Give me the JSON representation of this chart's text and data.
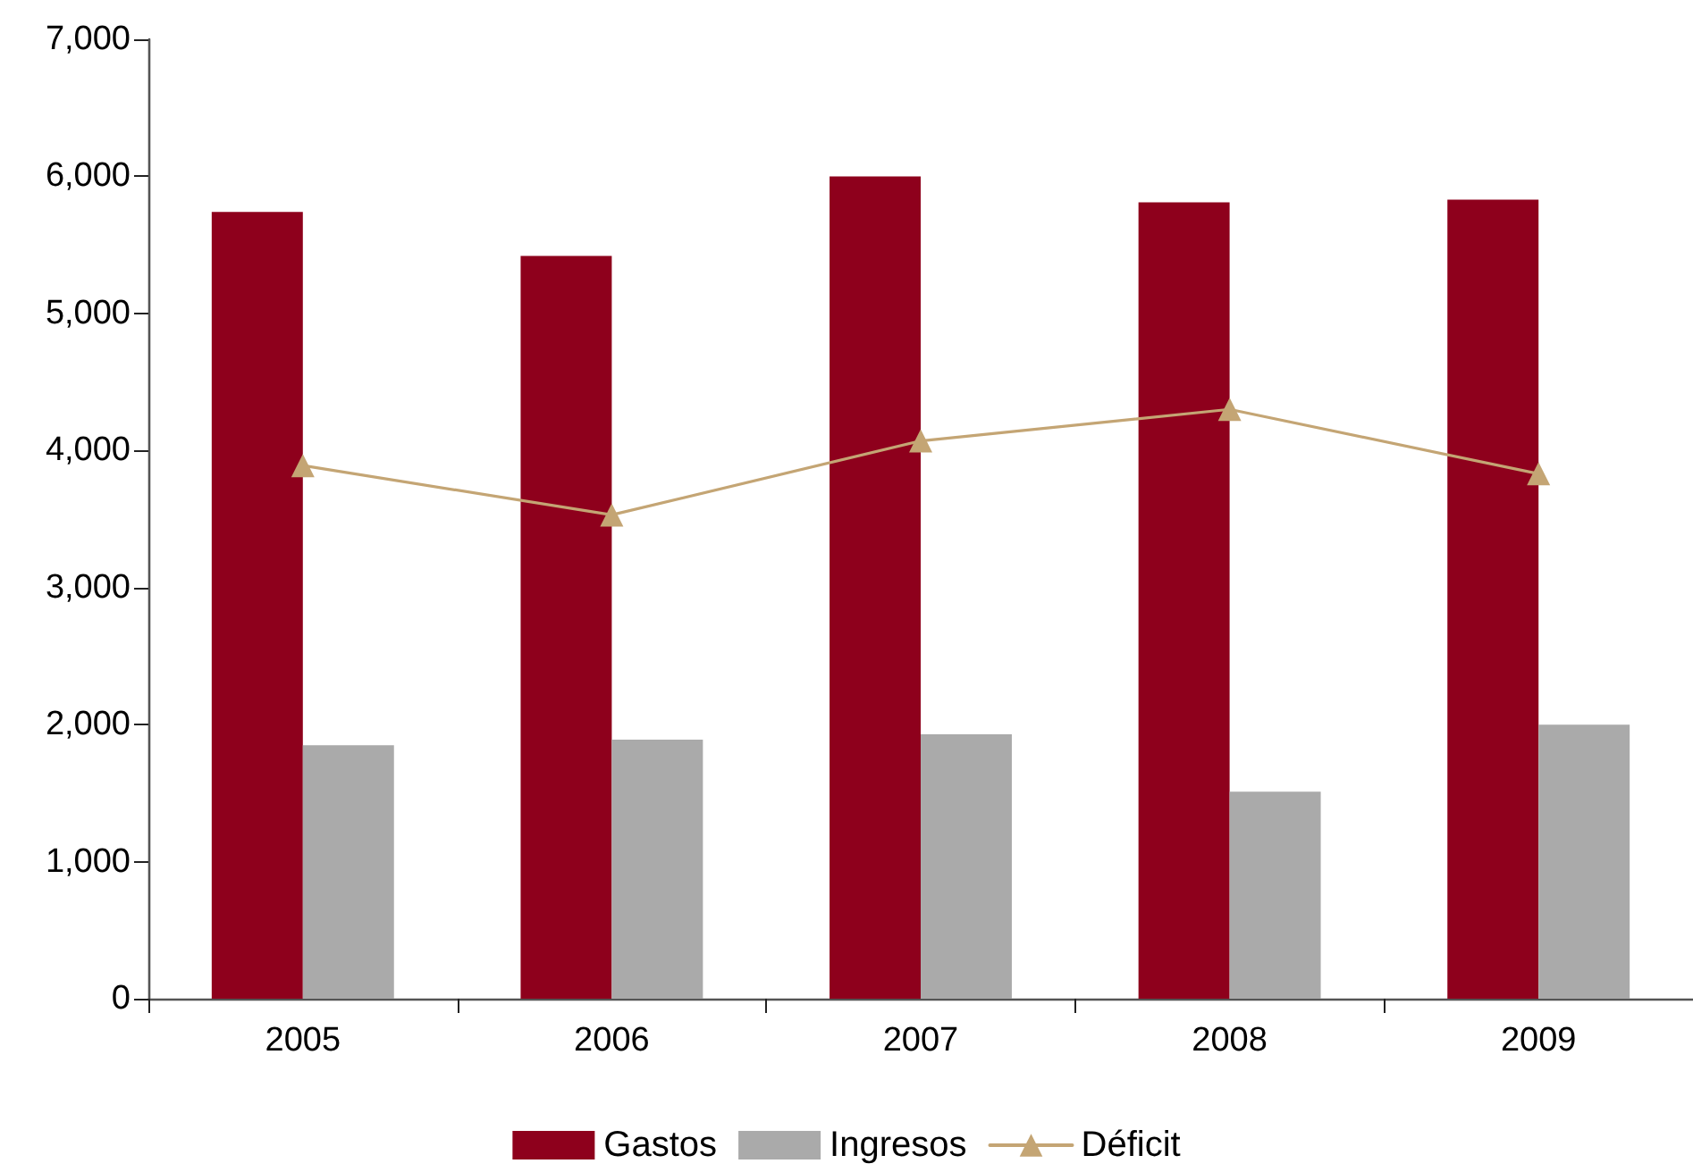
{
  "chart_data": {
    "type": "bar",
    "categories": [
      "2005",
      "2006",
      "2007",
      "2008",
      "2009"
    ],
    "series": [
      {
        "name": "Gastos",
        "color": "#8e001c",
        "values": [
          5740,
          5420,
          6000,
          5810,
          5830
        ]
      },
      {
        "name": "Ingresos",
        "color": "#aaaaaa",
        "values": [
          1850,
          1890,
          1930,
          1510,
          2000
        ]
      },
      {
        "name": "Déficit",
        "type": "line",
        "color": "#c4a574",
        "values": [
          3890,
          3530,
          4070,
          4300,
          3830
        ]
      }
    ],
    "ylim": [
      0,
      7000
    ],
    "yticks": [
      {
        "value": 0,
        "label": "0"
      },
      {
        "value": 1000,
        "label": "1,000"
      },
      {
        "value": 2000,
        "label": "2,000"
      },
      {
        "value": 3000,
        "label": "3,000"
      },
      {
        "value": 4000,
        "label": "4,000"
      },
      {
        "value": 5000,
        "label": "5,000"
      },
      {
        "value": 6000,
        "label": "6,000"
      },
      {
        "value": 7000,
        "label": "7,000"
      }
    ],
    "grid": false,
    "legend": "bottom",
    "marker": "triangle",
    "line_style": "solid"
  }
}
